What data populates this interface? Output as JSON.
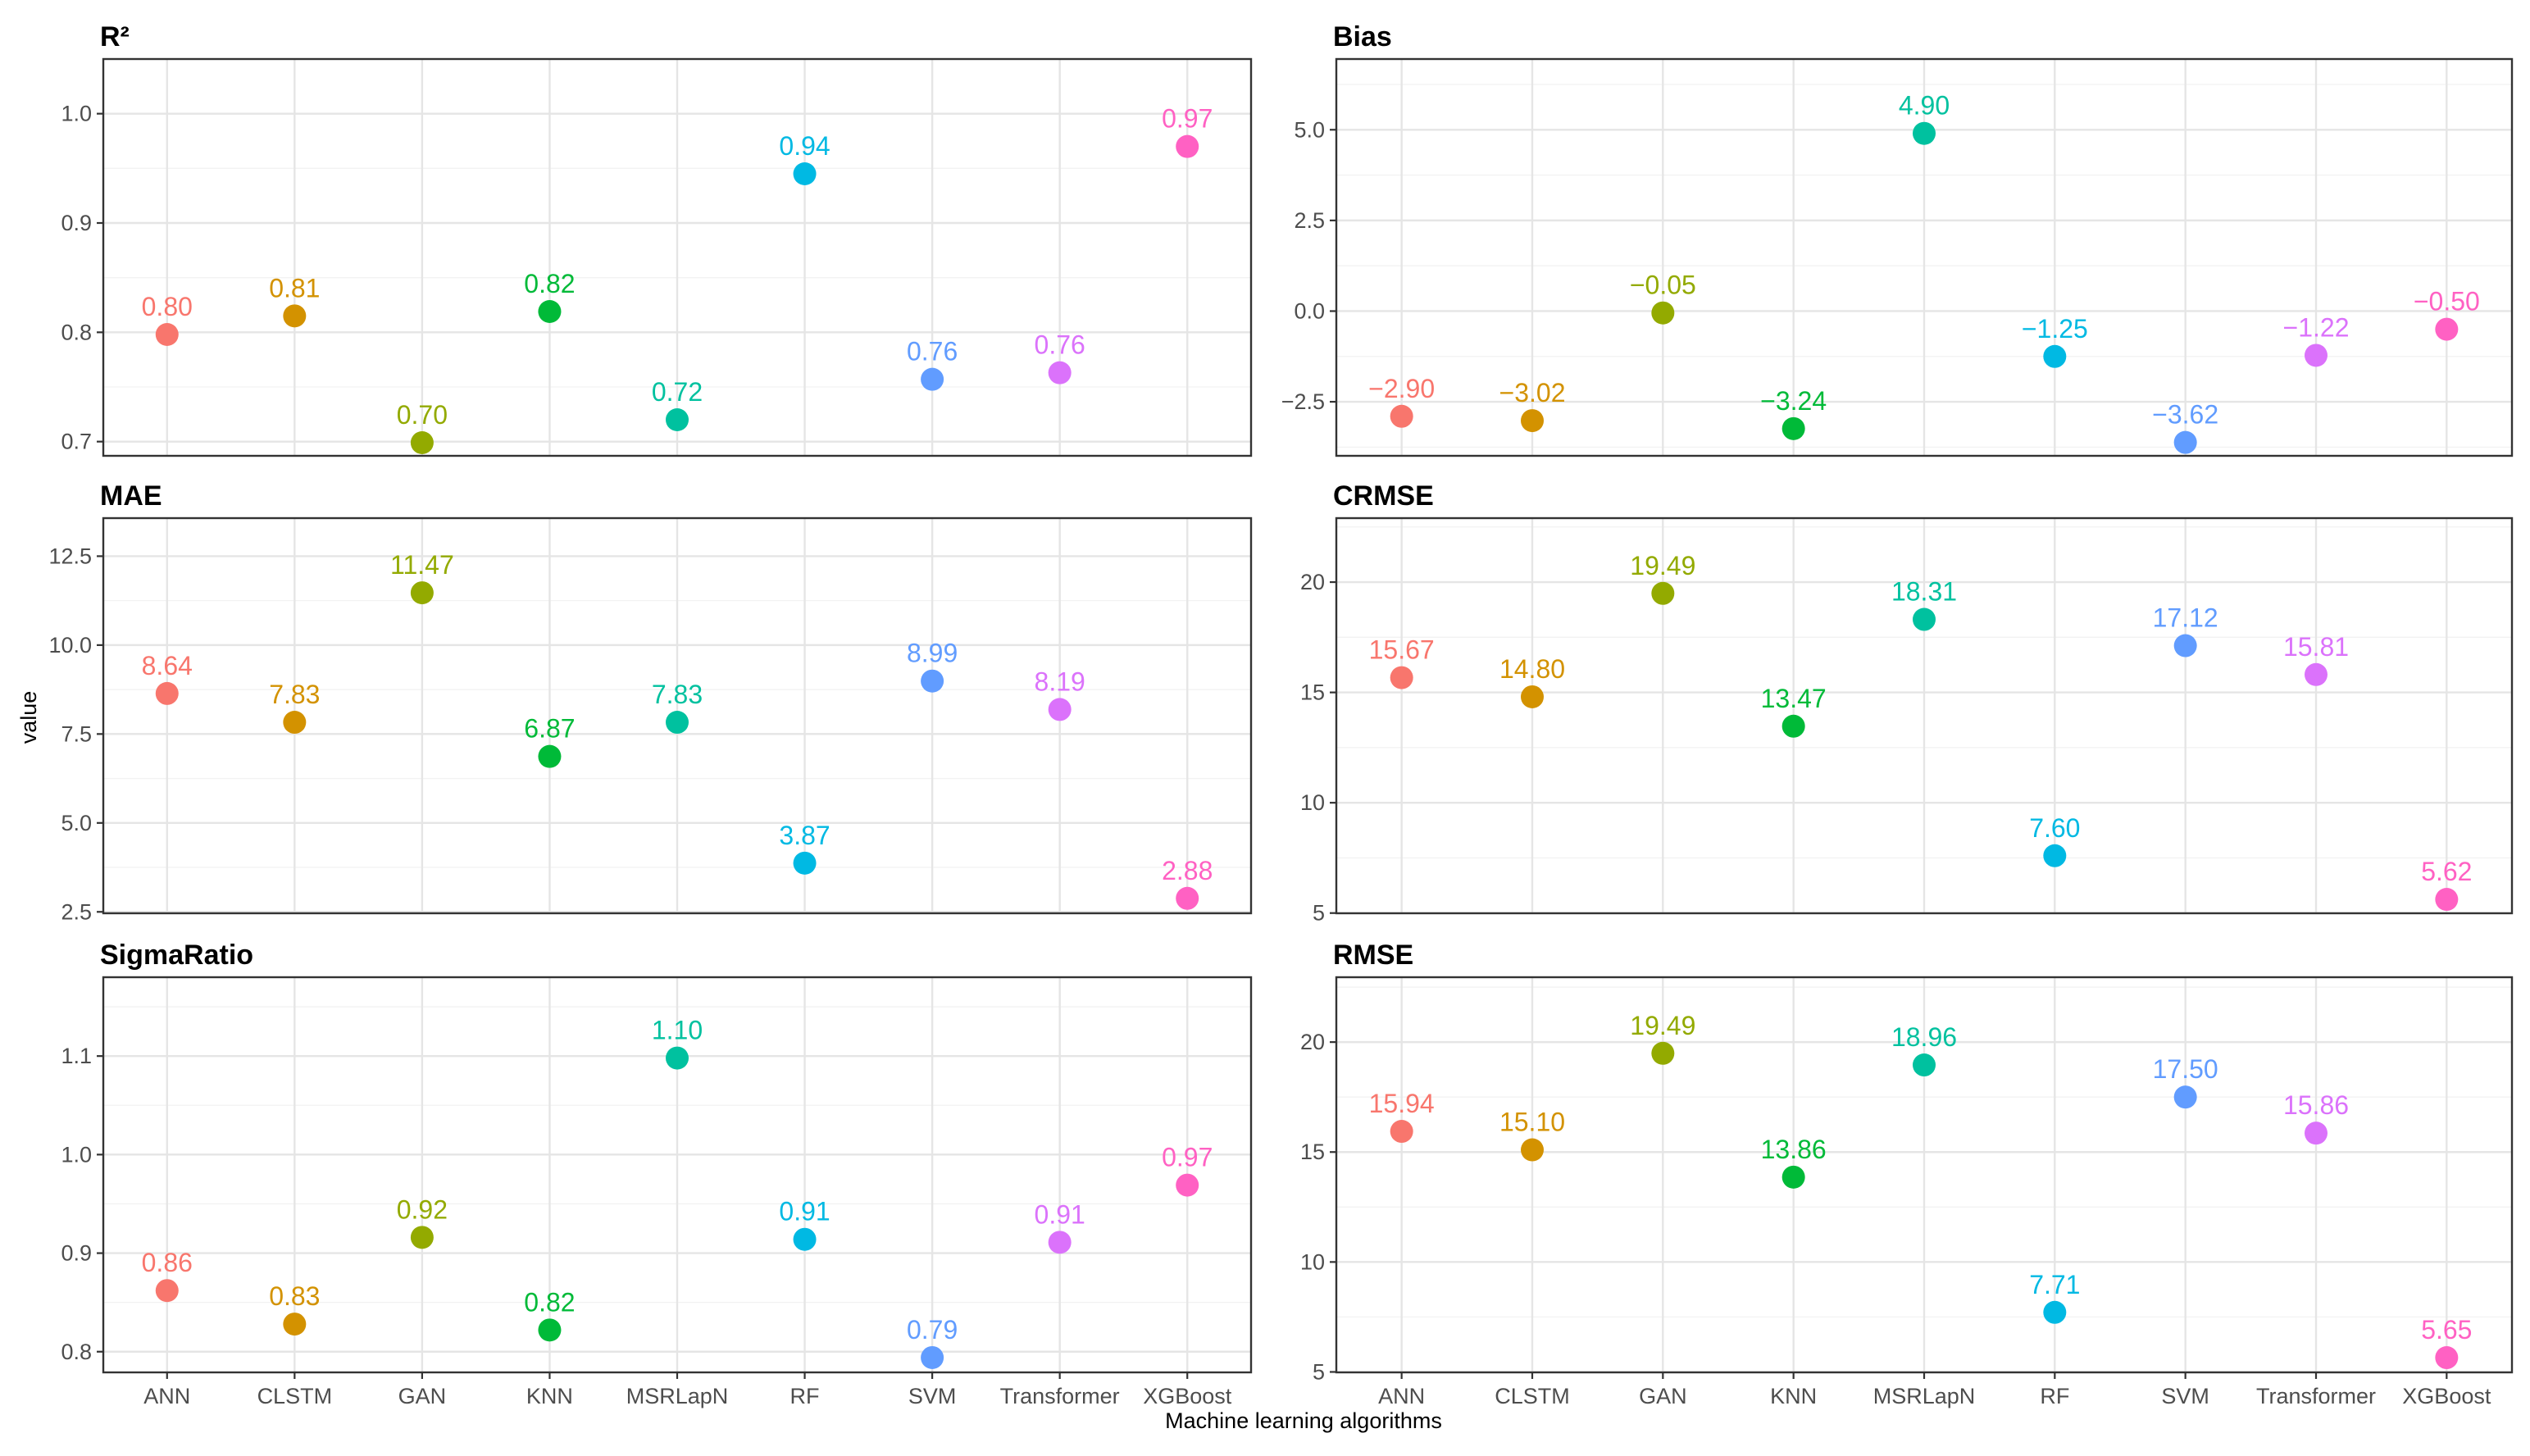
{
  "figure": {
    "x_axis_title": "Machine learning algorithms",
    "y_axis_title": "value"
  },
  "colors": {
    "ANN": "#F8766D",
    "CLSTM": "#D39200",
    "GAN": "#93AA00",
    "KNN": "#00BA38",
    "MSRLapN": "#00C19F",
    "RF": "#00B9E3",
    "SVM": "#619CFF",
    "Transformer": "#DB72FB",
    "XGBoost": "#FF61C3"
  },
  "chart_data": [
    {
      "type": "scatter",
      "title": "R²",
      "categories": [
        "ANN",
        "CLSTM",
        "GAN",
        "KNN",
        "MSRLapN",
        "RF",
        "SVM",
        "Transformer",
        "XGBoost"
      ],
      "values": [
        0.798,
        0.815,
        0.699,
        0.819,
        0.72,
        0.945,
        0.757,
        0.763,
        0.97
      ],
      "labels": [
        "0.80",
        "0.81",
        "0.70",
        "0.82",
        "0.72",
        "0.94",
        "0.76",
        "0.76",
        "0.97"
      ],
      "yticks": [
        0.7,
        0.8,
        0.9,
        1.0
      ],
      "ytick_labels": [
        "0.7",
        "0.8",
        "0.9",
        "1.0"
      ],
      "ylim": [
        0.687,
        1.05
      ]
    },
    {
      "type": "scatter",
      "title": "Bias",
      "categories": [
        "ANN",
        "CLSTM",
        "GAN",
        "KNN",
        "MSRLapN",
        "RF",
        "SVM",
        "Transformer",
        "XGBoost"
      ],
      "values": [
        -2.9,
        -3.02,
        -0.05,
        -3.24,
        4.9,
        -1.25,
        -3.62,
        -1.22,
        -0.5
      ],
      "labels": [
        "−2.90",
        "−3.02",
        "−0.05",
        "−3.24",
        "4.90",
        "−1.25",
        "−3.62",
        "−1.22",
        "−0.50"
      ],
      "yticks": [
        -2.5,
        0.0,
        2.5,
        5.0
      ],
      "ytick_labels": [
        "−2.5",
        "0.0",
        "2.5",
        "5.0"
      ],
      "ylim": [
        -3.99,
        6.95
      ]
    },
    {
      "type": "scatter",
      "title": "MAE",
      "categories": [
        "ANN",
        "CLSTM",
        "GAN",
        "KNN",
        "MSRLapN",
        "RF",
        "SVM",
        "Transformer",
        "XGBoost"
      ],
      "values": [
        8.64,
        7.83,
        11.47,
        6.87,
        7.83,
        3.87,
        8.99,
        8.19,
        2.88
      ],
      "labels": [
        "8.64",
        "7.83",
        "11.47",
        "6.87",
        "7.83",
        "3.87",
        "8.99",
        "8.19",
        "2.88"
      ],
      "yticks": [
        2.5,
        5.0,
        7.5,
        10.0,
        12.5
      ],
      "ytick_labels": [
        "2.5",
        "5.0",
        "7.5",
        "10.0",
        "12.5"
      ],
      "ylim": [
        2.46,
        13.57
      ]
    },
    {
      "type": "scatter",
      "title": "CRMSE",
      "categories": [
        "ANN",
        "CLSTM",
        "GAN",
        "KNN",
        "MSRLapN",
        "RF",
        "SVM",
        "Transformer",
        "XGBoost"
      ],
      "values": [
        15.67,
        14.8,
        19.49,
        13.47,
        18.31,
        7.6,
        17.12,
        15.81,
        5.62
      ],
      "labels": [
        "15.67",
        "14.80",
        "19.49",
        "13.47",
        "18.31",
        "7.60",
        "17.12",
        "15.81",
        "5.62"
      ],
      "yticks": [
        5,
        10,
        15,
        20
      ],
      "ytick_labels": [
        "5",
        "10",
        "15",
        "20"
      ],
      "ylim": [
        4.99,
        22.9
      ]
    },
    {
      "type": "scatter",
      "title": "SigmaRatio",
      "categories": [
        "ANN",
        "CLSTM",
        "GAN",
        "KNN",
        "MSRLapN",
        "RF",
        "SVM",
        "Transformer",
        "XGBoost"
      ],
      "values": [
        0.862,
        0.828,
        0.916,
        0.822,
        1.098,
        0.914,
        0.794,
        0.911,
        0.969
      ],
      "labels": [
        "0.86",
        "0.83",
        "0.92",
        "0.82",
        "1.10",
        "0.91",
        "0.79",
        "0.91",
        "0.97"
      ],
      "yticks": [
        0.8,
        0.9,
        1.0,
        1.1
      ],
      "ytick_labels": [
        "0.8",
        "0.9",
        "1.0",
        "1.1"
      ],
      "ylim": [
        0.779,
        1.18
      ]
    },
    {
      "type": "scatter",
      "title": "RMSE",
      "categories": [
        "ANN",
        "CLSTM",
        "GAN",
        "KNN",
        "MSRLapN",
        "RF",
        "SVM",
        "Transformer",
        "XGBoost"
      ],
      "values": [
        15.94,
        15.1,
        19.49,
        13.86,
        18.96,
        7.71,
        17.5,
        15.86,
        5.65
      ],
      "labels": [
        "15.94",
        "15.10",
        "19.49",
        "13.86",
        "18.96",
        "7.71",
        "17.50",
        "15.86",
        "5.65"
      ],
      "yticks": [
        5,
        10,
        15,
        20
      ],
      "ytick_labels": [
        "5",
        "10",
        "15",
        "20"
      ],
      "ylim": [
        4.98,
        22.95
      ]
    }
  ]
}
